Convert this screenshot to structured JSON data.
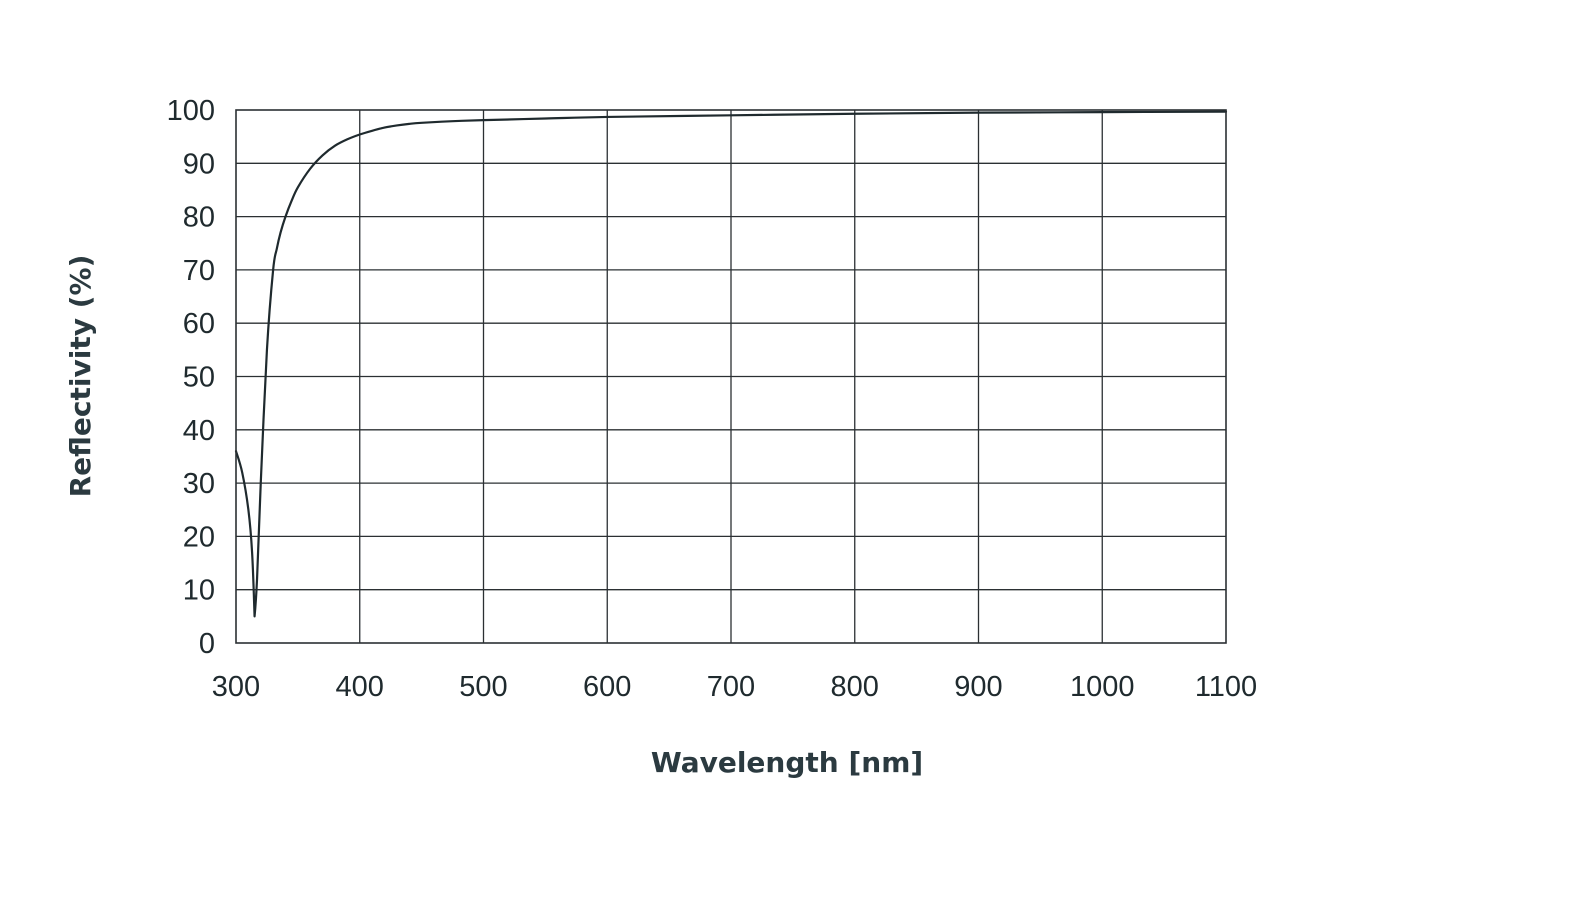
{
  "chart_data": {
    "type": "line",
    "title": "",
    "xlabel": "Wavelength [nm]",
    "ylabel": "Reflectivity (%)",
    "xlim": [
      300,
      1100
    ],
    "ylim": [
      0,
      100
    ],
    "x_ticks": [
      300,
      400,
      500,
      600,
      700,
      800,
      900,
      1000,
      1100
    ],
    "y_ticks": [
      0,
      10,
      20,
      30,
      40,
      50,
      60,
      70,
      80,
      90,
      100
    ],
    "grid": true,
    "legend": "none",
    "line_color": "#1f2a2e",
    "grid_color": "#2b3033",
    "series": [
      {
        "x": [
          300,
          305,
          310,
          313,
          315,
          317,
          320,
          325,
          330,
          333,
          336,
          340,
          345,
          350,
          360,
          370,
          380,
          390,
          400,
          410,
          420,
          430,
          440,
          450,
          475,
          500,
          550,
          600,
          700,
          800,
          900,
          1000,
          1100
        ],
        "y": [
          36,
          32,
          25,
          17,
          5,
          12,
          30,
          55,
          70,
          74,
          77,
          80,
          83,
          85.5,
          89,
          91.5,
          93.3,
          94.5,
          95.4,
          96.1,
          96.7,
          97.1,
          97.4,
          97.6,
          97.9,
          98.1,
          98.4,
          98.7,
          99,
          99.3,
          99.5,
          99.6,
          99.7
        ]
      }
    ]
  }
}
